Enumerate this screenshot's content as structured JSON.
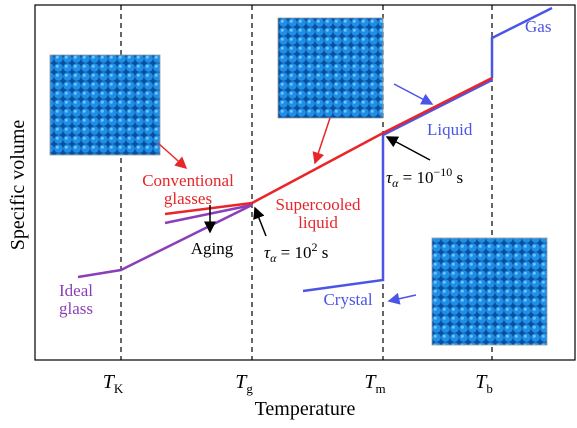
{
  "axes": {
    "y_label": "Specific volume",
    "x_label": "Temperature",
    "ticks": [
      {
        "symbol": "T",
        "sub": "K"
      },
      {
        "symbol": "T",
        "sub": "g"
      },
      {
        "symbol": "T",
        "sub": "m"
      },
      {
        "symbol": "T",
        "sub": "b"
      }
    ]
  },
  "labels": {
    "gas": "Gas",
    "liquid": "Liquid",
    "conventional_glasses": [
      "Conventional",
      "glasses"
    ],
    "supercooled_liquid": [
      "Supercooled",
      "liquid"
    ],
    "aging": "Aging",
    "ideal_glass": [
      "Ideal",
      "glass"
    ],
    "crystal": "Crystal"
  },
  "relaxation": [
    {
      "symbol": "τ",
      "sub": "α",
      "eq": " = 10",
      "sup": "2",
      "unit": " s"
    },
    {
      "symbol": "τ",
      "sub": "α",
      "eq": " = 10",
      "sup": "−10",
      "unit": " s"
    }
  ]
}
